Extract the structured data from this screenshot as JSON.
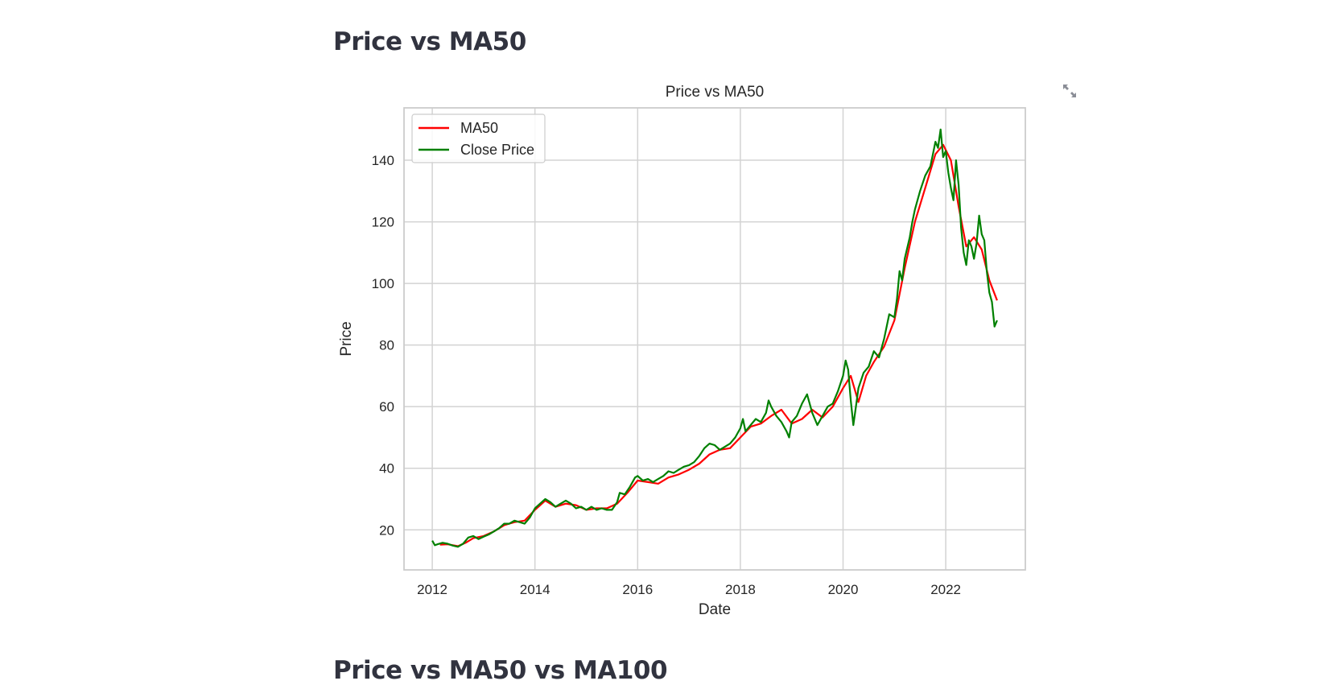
{
  "sections": [
    {
      "title": "Price vs MA50"
    },
    {
      "title": "Price vs MA50 vs MA100"
    }
  ],
  "toolbar": {
    "expand_icon": "fullscreen-expand-icon"
  },
  "chart_data": {
    "type": "line",
    "title": "Price vs MA50",
    "xlabel": "Date",
    "ylabel": "Price",
    "xlim": [
      2011.45,
      2023.55
    ],
    "ylim": [
      7,
      157
    ],
    "xticks": [
      2012,
      2014,
      2016,
      2018,
      2020,
      2022
    ],
    "xtick_labels": [
      "2012",
      "2014",
      "2016",
      "2018",
      "2020",
      "2022"
    ],
    "yticks": [
      20,
      40,
      60,
      80,
      100,
      120,
      140
    ],
    "ytick_labels": [
      "20",
      "40",
      "60",
      "80",
      "100",
      "120",
      "140"
    ],
    "grid": true,
    "legend": "upper left",
    "series": [
      {
        "name": "MA50",
        "color": "#ff0000",
        "x": [
          2012.15,
          2012.3,
          2012.5,
          2012.65,
          2012.8,
          2013.0,
          2013.2,
          2013.4,
          2013.6,
          2013.8,
          2014.0,
          2014.2,
          2014.4,
          2014.6,
          2014.8,
          2015.0,
          2015.2,
          2015.4,
          2015.6,
          2015.8,
          2016.0,
          2016.2,
          2016.4,
          2016.6,
          2016.8,
          2017.0,
          2017.2,
          2017.4,
          2017.6,
          2017.8,
          2018.0,
          2018.2,
          2018.4,
          2018.6,
          2018.8,
          2019.0,
          2019.2,
          2019.4,
          2019.6,
          2019.8,
          2020.0,
          2020.15,
          2020.3,
          2020.45,
          2020.6,
          2020.8,
          2021.0,
          2021.2,
          2021.4,
          2021.6,
          2021.8,
          2021.95,
          2022.1,
          2022.25,
          2022.4,
          2022.55,
          2022.7,
          2022.85,
          2023.0
        ],
        "y": [
          15.2,
          15.3,
          14.7,
          15.8,
          17.3,
          18.0,
          19.5,
          21.5,
          22.5,
          23.0,
          26.5,
          29.5,
          27.5,
          28.5,
          28.0,
          26.5,
          27.0,
          27.0,
          28.5,
          32.0,
          36.0,
          35.5,
          35.0,
          37.0,
          38.0,
          39.5,
          41.5,
          44.5,
          46.0,
          46.5,
          50.0,
          53.5,
          54.5,
          57.0,
          59.0,
          54.5,
          56.0,
          59.0,
          56.5,
          60.0,
          66.0,
          70.0,
          61.5,
          70.0,
          74.5,
          79.5,
          88.0,
          105.0,
          120.0,
          131.0,
          142.0,
          145.0,
          140.0,
          125.0,
          112.0,
          115.0,
          111.0,
          101.0,
          94.5
        ]
      },
      {
        "name": "Close Price",
        "color": "#008000",
        "x": [
          2012.0,
          2012.05,
          2012.1,
          2012.2,
          2012.3,
          2012.4,
          2012.5,
          2012.6,
          2012.7,
          2012.8,
          2012.9,
          2013.0,
          2013.1,
          2013.2,
          2013.3,
          2013.4,
          2013.5,
          2013.6,
          2013.7,
          2013.8,
          2013.9,
          2014.0,
          2014.1,
          2014.2,
          2014.3,
          2014.4,
          2014.5,
          2014.6,
          2014.7,
          2014.8,
          2014.9,
          2015.0,
          2015.1,
          2015.2,
          2015.3,
          2015.4,
          2015.5,
          2015.6,
          2015.65,
          2015.75,
          2015.85,
          2015.95,
          2016.0,
          2016.1,
          2016.2,
          2016.3,
          2016.4,
          2016.5,
          2016.6,
          2016.7,
          2016.8,
          2016.9,
          2017.0,
          2017.1,
          2017.2,
          2017.3,
          2017.4,
          2017.5,
          2017.6,
          2017.7,
          2017.8,
          2017.9,
          2018.0,
          2018.05,
          2018.1,
          2018.2,
          2018.3,
          2018.4,
          2018.5,
          2018.55,
          2018.6,
          2018.7,
          2018.8,
          2018.9,
          2018.95,
          2019.0,
          2019.1,
          2019.2,
          2019.3,
          2019.4,
          2019.5,
          2019.6,
          2019.7,
          2019.8,
          2019.9,
          2020.0,
          2020.05,
          2020.1,
          2020.15,
          2020.2,
          2020.25,
          2020.3,
          2020.4,
          2020.5,
          2020.6,
          2020.7,
          2020.8,
          2020.9,
          2021.0,
          2021.05,
          2021.1,
          2021.15,
          2021.2,
          2021.3,
          2021.35,
          2021.4,
          2021.5,
          2021.6,
          2021.7,
          2021.75,
          2021.8,
          2021.85,
          2021.9,
          2021.95,
          2022.0,
          2022.05,
          2022.1,
          2022.15,
          2022.2,
          2022.25,
          2022.3,
          2022.35,
          2022.4,
          2022.45,
          2022.5,
          2022.55,
          2022.6,
          2022.65,
          2022.7,
          2022.75,
          2022.8,
          2022.85,
          2022.9,
          2022.95,
          2023.0
        ],
        "y": [
          16.5,
          15.0,
          15.3,
          15.8,
          15.5,
          14.9,
          14.5,
          15.5,
          17.5,
          18.0,
          17.0,
          17.8,
          18.5,
          19.5,
          20.5,
          22.0,
          22.0,
          23.0,
          22.5,
          22.0,
          24.0,
          27.0,
          28.5,
          30.0,
          29.0,
          27.5,
          28.5,
          29.5,
          28.5,
          27.0,
          27.5,
          26.5,
          27.5,
          26.5,
          27.0,
          26.5,
          26.5,
          29.0,
          32.0,
          31.5,
          34.0,
          37.0,
          37.5,
          36.0,
          36.5,
          35.5,
          36.5,
          37.5,
          39.0,
          38.5,
          39.5,
          40.5,
          41.0,
          42.0,
          44.0,
          46.5,
          48.0,
          47.5,
          46.0,
          47.0,
          48.0,
          50.0,
          53.0,
          56.0,
          52.0,
          54.0,
          56.0,
          55.0,
          58.0,
          62.0,
          60.0,
          57.0,
          55.0,
          52.0,
          50.0,
          55.0,
          57.0,
          61.0,
          64.0,
          58.0,
          54.0,
          57.0,
          60.0,
          61.0,
          65.0,
          70.0,
          75.0,
          72.0,
          62.0,
          54.0,
          60.0,
          66.0,
          71.0,
          73.0,
          78.0,
          76.0,
          82.0,
          90.0,
          89.0,
          95.0,
          104.0,
          101.0,
          108.0,
          115.0,
          120.0,
          124.0,
          130.0,
          135.0,
          138.0,
          142.0,
          146.0,
          144.0,
          150.0,
          141.0,
          143.0,
          136.0,
          131.0,
          127.0,
          140.0,
          132.0,
          118.0,
          110.0,
          106.0,
          114.0,
          112.0,
          108.0,
          113.0,
          122.0,
          116.0,
          114.0,
          104.0,
          97.0,
          94.0,
          86.0,
          88.0
        ]
      }
    ]
  }
}
